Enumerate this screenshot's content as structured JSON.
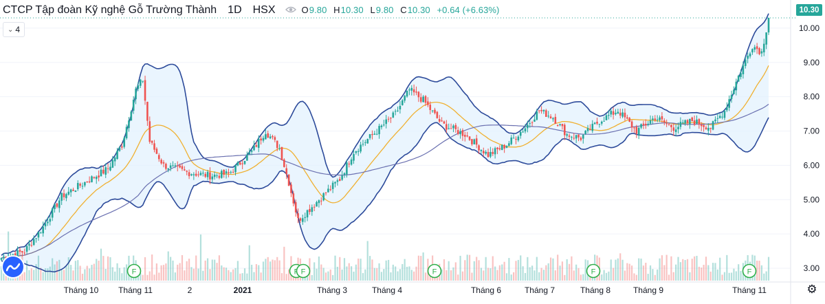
{
  "header": {
    "symbol_name": "CTCP Tập đoàn Kỹ nghệ Gỗ Trường Thành",
    "interval": "1D",
    "exchange": "HSX",
    "ohlc": {
      "o_label": "O",
      "o": "9.80",
      "h_label": "H",
      "h": "10.30",
      "l_label": "L",
      "l": "9.80",
      "c_label": "C",
      "c": "10.30",
      "change": "+0.64 (+6.63%)"
    }
  },
  "indicator_toggle": {
    "label": "4"
  },
  "price_badge": "10.30",
  "icons": {
    "visibility": "eye-icon",
    "collapse": "chevron-down-icon",
    "logo": "tradingview-logo-icon",
    "settings": "gear-icon"
  },
  "colors": {
    "up": "#26a69a",
    "down": "#ef5350",
    "band_line": "#2c4a9a",
    "band_fill": "#e3f2fd",
    "ma_fast": "#f0b030",
    "ma_slow": "#6a70b0",
    "dividend": "#2eaf4a"
  },
  "chart_data": {
    "type": "candlestick",
    "title": "CTCP Tập đoàn Kỹ nghệ Gỗ Trường Thành",
    "y_axis": {
      "range": [
        2.6,
        10.5
      ],
      "ticks": [
        "3.00",
        "4.00",
        "5.00",
        "6.00",
        "7.00",
        "8.00",
        "9.00",
        "10.00"
      ]
    },
    "x_axis": {
      "ticks": [
        "Tháng 10",
        "Tháng 11",
        "2",
        "2021",
        "Tháng 3",
        "Tháng 4",
        "Tháng 6",
        "Tháng 7",
        "Tháng 8",
        "Tháng 9",
        "Tháng 11"
      ]
    },
    "last_price": 10.3,
    "dividend_marker_label": "F",
    "dividend_markers_at": [
      "Tháng 11",
      "2021",
      "Tháng 4",
      "Tháng 8",
      "Tháng 11"
    ],
    "close_anchors": [
      {
        "i": 0,
        "v": 3.3
      },
      {
        "i": 10,
        "v": 3.5
      },
      {
        "i": 18,
        "v": 4.2
      },
      {
        "i": 26,
        "v": 5.1
      },
      {
        "i": 36,
        "v": 5.5
      },
      {
        "i": 46,
        "v": 5.9
      },
      {
        "i": 52,
        "v": 6.6
      },
      {
        "i": 58,
        "v": 8.2
      },
      {
        "i": 61,
        "v": 8.5
      },
      {
        "i": 64,
        "v": 6.7
      },
      {
        "i": 70,
        "v": 6.0
      },
      {
        "i": 80,
        "v": 5.8
      },
      {
        "i": 90,
        "v": 5.7
      },
      {
        "i": 98,
        "v": 5.75
      },
      {
        "i": 108,
        "v": 6.4
      },
      {
        "i": 114,
        "v": 7.0
      },
      {
        "i": 120,
        "v": 6.5
      },
      {
        "i": 124,
        "v": 5.5
      },
      {
        "i": 128,
        "v": 4.4
      },
      {
        "i": 134,
        "v": 4.8
      },
      {
        "i": 140,
        "v": 5.2
      },
      {
        "i": 146,
        "v": 5.6
      },
      {
        "i": 152,
        "v": 6.4
      },
      {
        "i": 162,
        "v": 7.0
      },
      {
        "i": 170,
        "v": 7.5
      },
      {
        "i": 176,
        "v": 8.2
      },
      {
        "i": 182,
        "v": 7.9
      },
      {
        "i": 190,
        "v": 7.2
      },
      {
        "i": 200,
        "v": 6.9
      },
      {
        "i": 210,
        "v": 6.3
      },
      {
        "i": 218,
        "v": 6.6
      },
      {
        "i": 226,
        "v": 7.1
      },
      {
        "i": 232,
        "v": 7.6
      },
      {
        "i": 238,
        "v": 7.4
      },
      {
        "i": 244,
        "v": 6.9
      },
      {
        "i": 250,
        "v": 6.8
      },
      {
        "i": 258,
        "v": 7.3
      },
      {
        "i": 266,
        "v": 7.6
      },
      {
        "i": 274,
        "v": 7.0
      },
      {
        "i": 282,
        "v": 7.4
      },
      {
        "i": 290,
        "v": 7.1
      },
      {
        "i": 298,
        "v": 7.3
      },
      {
        "i": 306,
        "v": 7.1
      },
      {
        "i": 312,
        "v": 7.6
      },
      {
        "i": 318,
        "v": 8.6
      },
      {
        "i": 324,
        "v": 9.5
      },
      {
        "i": 328,
        "v": 9.3
      },
      {
        "i": 331,
        "v": 10.3
      }
    ],
    "bar_count": 332
  }
}
